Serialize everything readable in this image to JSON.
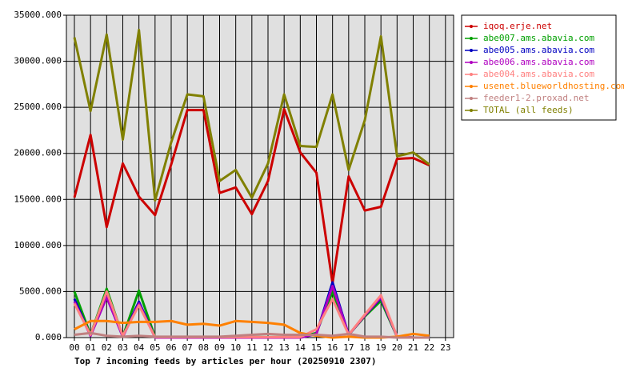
{
  "chart_data": {
    "type": "line",
    "title": "Top 7 incoming feeds by articles per hour (20250910 2307)",
    "categories": [
      "00",
      "01",
      "02",
      "03",
      "04",
      "05",
      "06",
      "07",
      "08",
      "09",
      "10",
      "11",
      "12",
      "13",
      "14",
      "15",
      "16",
      "17",
      "18",
      "19",
      "20",
      "21",
      "22",
      "23"
    ],
    "ylim": [
      0,
      35000
    ],
    "yticks": [
      {
        "value": 0,
        "label": "0.000"
      },
      {
        "value": 5000,
        "label": "5000.000"
      },
      {
        "value": 10000,
        "label": "10000.000"
      },
      {
        "value": 15000,
        "label": "15000.000"
      },
      {
        "value": 20000,
        "label": "20000.000"
      },
      {
        "value": 25000,
        "label": "25000.000"
      },
      {
        "value": 30000,
        "label": "30000.000"
      },
      {
        "value": 35000,
        "label": "35000.000"
      }
    ],
    "grid": true,
    "legend": "top-right",
    "series": [
      {
        "name": "iqoq.erje.net",
        "color": "#cc0000",
        "values": [
          15200,
          22000,
          12000,
          18900,
          15300,
          13300,
          18800,
          24700,
          24700,
          15700,
          16300,
          13400,
          17000,
          24800,
          20100,
          17900,
          5900,
          17500,
          13800,
          14200,
          19400,
          19500,
          18700,
          null
        ]
      },
      {
        "name": "abe007.ams.abavia.com",
        "color": "#00a000",
        "values": [
          5000,
          300,
          5300,
          100,
          5100,
          50,
          50,
          50,
          50,
          50,
          50,
          50,
          50,
          50,
          50,
          500,
          5000,
          300,
          2300,
          4000,
          100,
          0,
          0,
          null
        ]
      },
      {
        "name": "abe005.ams.abavia.com",
        "color": "#0000c0",
        "values": [
          4200,
          200,
          4400,
          100,
          3900,
          0,
          0,
          0,
          0,
          0,
          0,
          0,
          0,
          0,
          0,
          400,
          6000,
          300,
          2400,
          4300,
          100,
          0,
          0,
          null
        ]
      },
      {
        "name": "abe006.ams.abavia.com",
        "color": "#b000c0",
        "values": [
          3900,
          200,
          4400,
          100,
          3700,
          0,
          0,
          0,
          0,
          0,
          0,
          0,
          0,
          0,
          0,
          400,
          5600,
          300,
          2400,
          4400,
          100,
          0,
          0,
          null
        ]
      },
      {
        "name": "abe004.ams.abavia.com",
        "color": "#ff8080",
        "values": [
          3700,
          300,
          5000,
          200,
          3500,
          50,
          50,
          50,
          50,
          50,
          50,
          50,
          50,
          50,
          50,
          900,
          4200,
          300,
          2500,
          4600,
          100,
          0,
          0,
          null
        ]
      },
      {
        "name": "usenet.blueworldhosting.com",
        "color": "#ff8000",
        "values": [
          900,
          1800,
          1800,
          1600,
          1700,
          1700,
          1800,
          1400,
          1500,
          1300,
          1800,
          1700,
          1600,
          1400,
          500,
          200,
          0,
          100,
          0,
          0,
          100,
          400,
          200,
          null
        ]
      },
      {
        "name": "feeder1-2.proxad.net",
        "color": "#c08080",
        "values": [
          300,
          500,
          200,
          100,
          200,
          100,
          100,
          100,
          100,
          100,
          200,
          300,
          400,
          300,
          300,
          300,
          200,
          400,
          100,
          100,
          0,
          0,
          0,
          null
        ]
      },
      {
        "name": "TOTAL (all feeds)",
        "color": "#808000",
        "values": [
          32600,
          24600,
          32900,
          21500,
          33400,
          14900,
          21200,
          26400,
          26200,
          17000,
          18200,
          15200,
          18900,
          26400,
          20800,
          20700,
          26400,
          18200,
          23600,
          32700,
          19700,
          20100,
          18800,
          null
        ]
      }
    ]
  }
}
